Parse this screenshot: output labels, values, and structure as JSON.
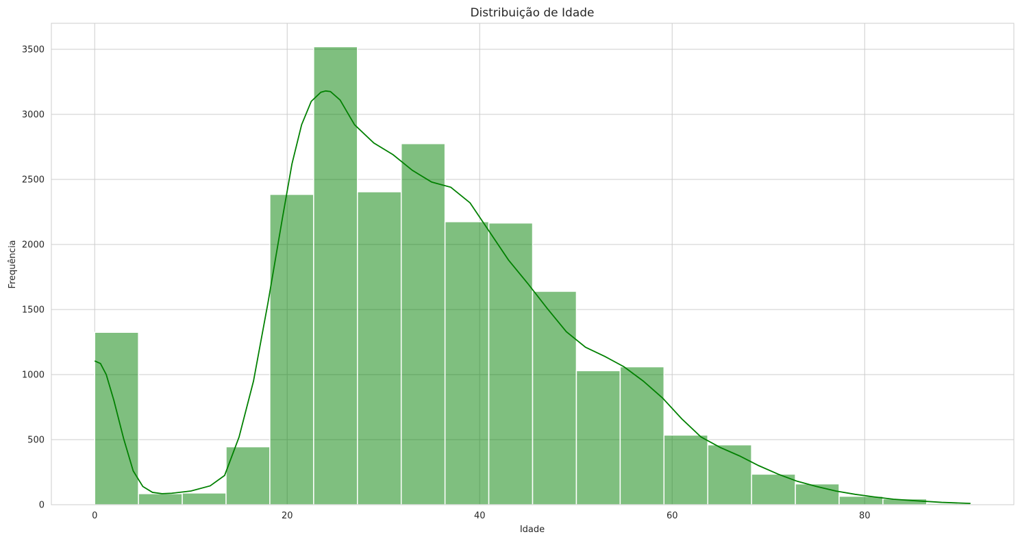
{
  "chart_data": {
    "type": "bar",
    "subtype": "histogram",
    "title": "Distribuição de Idade",
    "xlabel": "Idade",
    "ylabel": "Frequência",
    "xlim": [
      -4.5,
      95.5
    ],
    "ylim": [
      0,
      3700
    ],
    "grid": true,
    "color": "#008000",
    "bin_edges": [
      0,
      4.55,
      9.1,
      13.65,
      18.2,
      22.75,
      27.3,
      31.85,
      36.4,
      40.95,
      45.5,
      50.05,
      54.6,
      59.15,
      63.7,
      68.25,
      72.8,
      77.35,
      81.9,
      86.45,
      91.0
    ],
    "values": [
      1325,
      85,
      90,
      445,
      2385,
      3520,
      2405,
      2775,
      2175,
      2165,
      1640,
      1030,
      1060,
      535,
      460,
      235,
      160,
      65,
      45,
      10
    ],
    "xticks": [
      0,
      20,
      40,
      60,
      80
    ],
    "yticks": [
      0,
      500,
      1000,
      1500,
      2000,
      2500,
      3000,
      3500
    ],
    "kde": {
      "x": [
        0,
        0.6,
        1.2,
        2,
        3,
        4,
        5,
        6,
        7,
        8,
        10,
        12,
        13.5,
        15,
        16.5,
        18,
        19.5,
        20.5,
        21.5,
        22.5,
        23.5,
        24,
        24.5,
        25.5,
        27,
        29,
        31,
        33,
        35,
        37,
        39,
        41,
        43,
        45,
        47,
        49,
        51,
        53,
        55,
        57,
        59,
        61,
        63,
        65,
        67,
        69,
        71,
        73,
        75,
        77,
        79,
        81,
        83,
        85,
        88,
        91
      ],
      "y": [
        1105,
        1085,
        1000,
        800,
        510,
        260,
        140,
        95,
        85,
        88,
        105,
        145,
        225,
        520,
        950,
        1550,
        2200,
        2620,
        2920,
        3100,
        3170,
        3180,
        3175,
        3110,
        2920,
        2780,
        2690,
        2570,
        2480,
        2440,
        2320,
        2100,
        1880,
        1700,
        1510,
        1330,
        1210,
        1140,
        1060,
        950,
        820,
        660,
        520,
        440,
        375,
        300,
        235,
        180,
        140,
        105,
        80,
        60,
        42,
        32,
        18,
        10
      ]
    }
  }
}
